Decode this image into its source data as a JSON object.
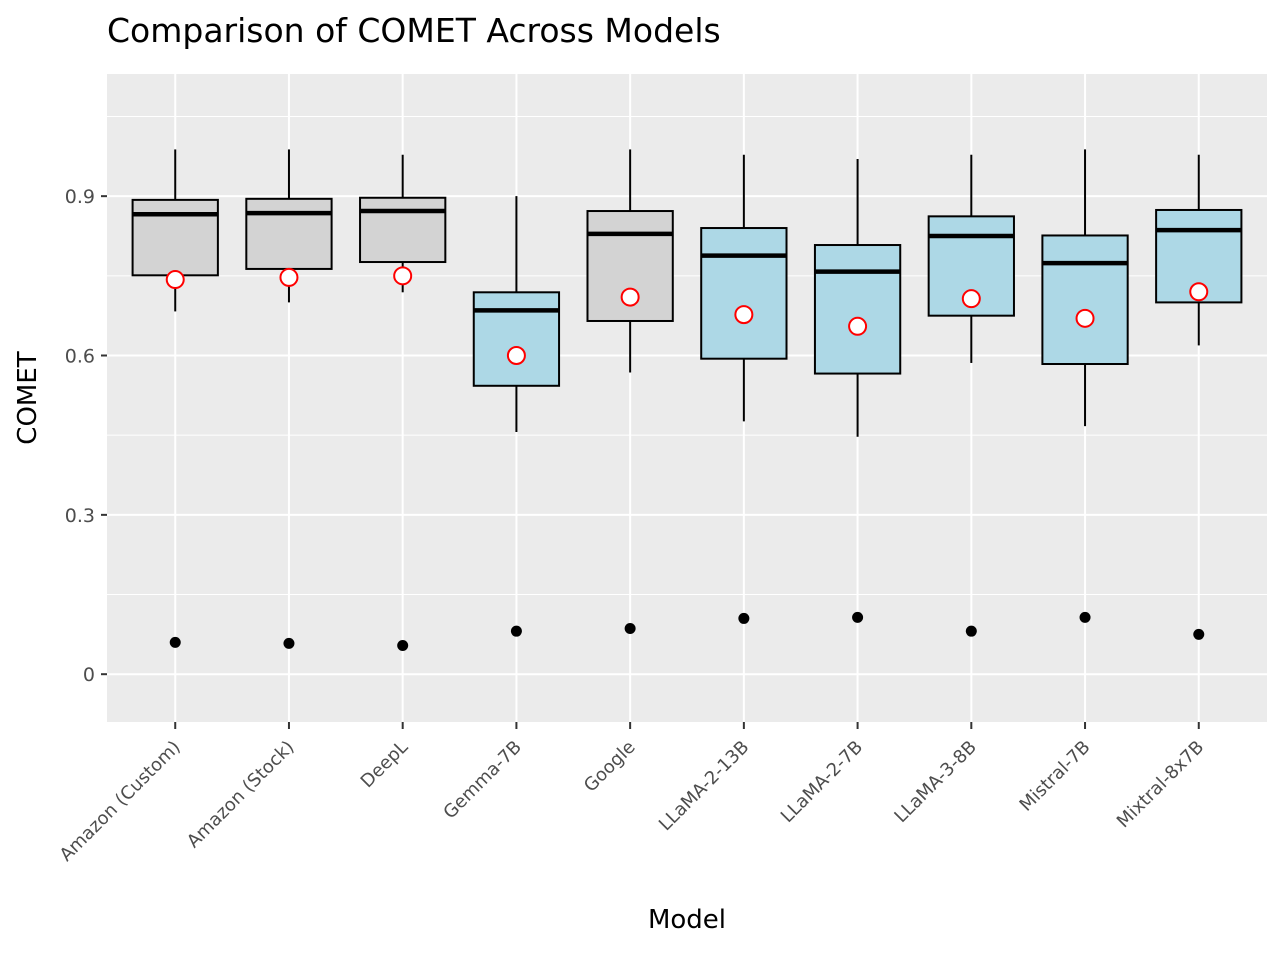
{
  "chart_data": {
    "type": "box",
    "title": "Comparison of COMET Across Models",
    "xlabel": "Model",
    "ylabel": "COMET",
    "ylim": [
      -0.09,
      1.13
    ],
    "yticks": [
      0,
      0.3,
      0.6,
      0.9
    ],
    "ytick_labels": [
      "0",
      "0.3",
      "0.6",
      "0.9"
    ],
    "grid": true,
    "legend": "none",
    "colors": {
      "panel_bg": "#ebebeb",
      "grid_major": "#ffffff",
      "box_commercial": "#d3d3d3",
      "box_open": "#add8e6",
      "box_edge": "#000000",
      "mean_marker_edge": "#ff0000",
      "mean_marker_fill": "#ffffff",
      "outlier": "#000000"
    },
    "categories": [
      "Amazon (Custom)",
      "Amazon (Stock)",
      "DeepL",
      "Gemma-7B",
      "Google",
      "LLaMA-2-13B",
      "LLaMA-2-7B",
      "LLaMA-3-8B",
      "Mistral-7B",
      "Mixtral-8x7B"
    ],
    "boxes": [
      {
        "label": "Amazon (Custom)",
        "fill": "#d3d3d3",
        "whisker_low": 0.683,
        "q1": 0.751,
        "median": 0.866,
        "q3": 0.893,
        "whisker_high": 0.988,
        "mean": 0.743,
        "outliers": [
          0.06
        ]
      },
      {
        "label": "Amazon (Stock)",
        "fill": "#d3d3d3",
        "whisker_low": 0.7,
        "q1": 0.763,
        "median": 0.868,
        "q3": 0.895,
        "whisker_high": 0.988,
        "mean": 0.747,
        "outliers": [
          0.058
        ]
      },
      {
        "label": "DeepL",
        "fill": "#d3d3d3",
        "whisker_low": 0.719,
        "q1": 0.776,
        "median": 0.872,
        "q3": 0.897,
        "whisker_high": 0.978,
        "mean": 0.75,
        "outliers": [
          0.054
        ]
      },
      {
        "label": "Gemma-7B",
        "fill": "#add8e6",
        "whisker_low": 0.456,
        "q1": 0.543,
        "median": 0.685,
        "q3": 0.719,
        "whisker_high": 0.9,
        "mean": 0.6,
        "outliers": [
          0.081
        ]
      },
      {
        "label": "Google",
        "fill": "#d3d3d3",
        "whisker_low": 0.568,
        "q1": 0.665,
        "median": 0.829,
        "q3": 0.872,
        "whisker_high": 0.988,
        "mean": 0.71,
        "outliers": [
          0.086
        ]
      },
      {
        "label": "LLaMA-2-13B",
        "fill": "#add8e6",
        "whisker_low": 0.476,
        "q1": 0.594,
        "median": 0.788,
        "q3": 0.84,
        "whisker_high": 0.978,
        "mean": 0.677,
        "outliers": [
          0.105
        ]
      },
      {
        "label": "LLaMA-2-7B",
        "fill": "#add8e6",
        "whisker_low": 0.447,
        "q1": 0.566,
        "median": 0.758,
        "q3": 0.808,
        "whisker_high": 0.97,
        "mean": 0.655,
        "outliers": [
          0.107
        ]
      },
      {
        "label": "LLaMA-3-8B",
        "fill": "#add8e6",
        "whisker_low": 0.586,
        "q1": 0.675,
        "median": 0.825,
        "q3": 0.862,
        "whisker_high": 0.978,
        "mean": 0.707,
        "outliers": [
          0.081
        ]
      },
      {
        "label": "Mistral-7B",
        "fill": "#add8e6",
        "whisker_low": 0.467,
        "q1": 0.584,
        "median": 0.774,
        "q3": 0.826,
        "whisker_high": 0.988,
        "mean": 0.67,
        "outliers": [
          0.107
        ]
      },
      {
        "label": "Mixtral-8x7B",
        "fill": "#add8e6",
        "whisker_low": 0.619,
        "q1": 0.7,
        "median": 0.836,
        "q3": 0.874,
        "whisker_high": 0.978,
        "mean": 0.72,
        "outliers": [
          0.075
        ]
      }
    ]
  }
}
